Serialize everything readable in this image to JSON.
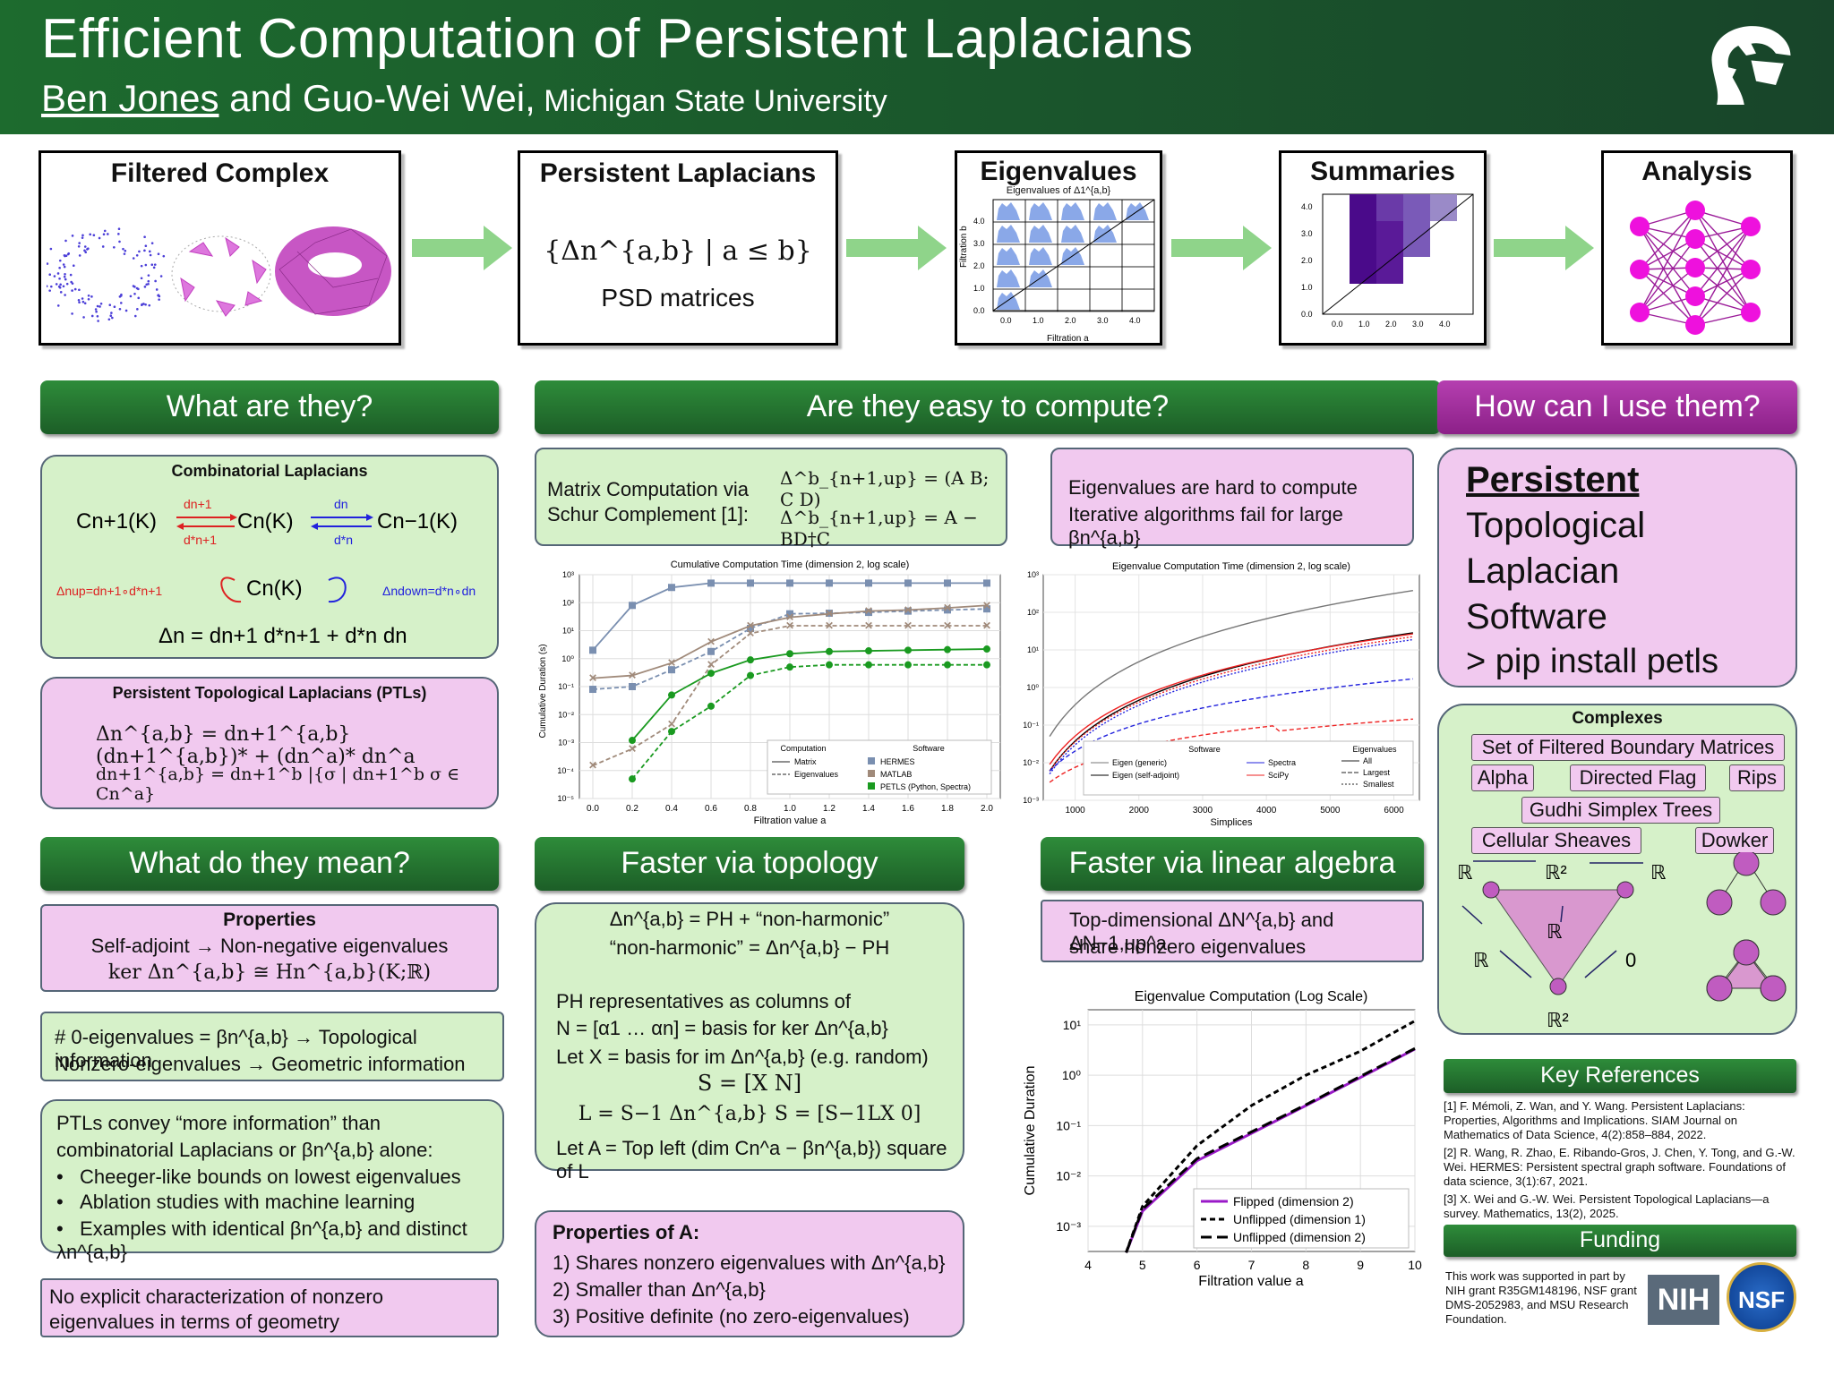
{
  "header": {
    "title": "Efficient Computation of Persistent Laplacians",
    "author1": "Ben Jones",
    "and": " and Guo-Wei Wei,",
    "institution": " Michigan State University"
  },
  "pipeline": {
    "s1": "Filtered Complex",
    "s2": "Persistent Laplacians",
    "s2_formula": "{Δn^{a,b} | a ≤ b}",
    "s2_sub": "PSD matrices",
    "s3": "Eigenvalues",
    "s3_caption": "Eigenvalues of Δ1^{a,b}",
    "s3_ylabel": "Filtration b",
    "s3_xlabel": "Filtration a",
    "s3_ticks": [
      "0.0",
      "1.0",
      "2.0",
      "3.0",
      "4.0"
    ],
    "s4": "Summaries",
    "s4_ticks": [
      "0.0",
      "1.0",
      "2.0",
      "3.0",
      "4.0"
    ],
    "s5": "Analysis"
  },
  "what": {
    "bar": "What are they?",
    "comb_title": "Combinatorial Laplacians",
    "cn1": "Cn+1(K)",
    "cn": "Cn(K)",
    "cnm1": "Cn−1(K)",
    "dn1": "dn+1",
    "dn1s": "d*n+1",
    "dn": "dn",
    "dns": "d*n",
    "up": "Δnup=dn+1∘d*n+1",
    "down": "Δndown=d*n∘dn",
    "lap": "Δn = dn+1 d*n+1 + d*n dn",
    "ptl_title": "Persistent Topological Laplacians (PTLs)",
    "ptl1": "Δn^{a,b} = dn+1^{a,b} (dn+1^{a,b})* + (dn^a)* dn^a",
    "ptl2": "dn+1^{a,b} = dn+1^b |{σ | dn+1^b σ ∈ Cn^a}"
  },
  "compute": {
    "bar": "Are they easy to compute?",
    "schur1": "Matrix Computation via",
    "schur2": "Schur Complement [1]:",
    "eq1": "Δ^b_{n+1,up} = (A B; C D)",
    "eq2": "Δ^b_{n+1,up} = A − BD†C",
    "hard1": "Eigenvalues are hard to compute",
    "hard2": "Iterative algorithms fail for large βn^{a,b}"
  },
  "use": {
    "bar": "How can I use them?",
    "p1": "Persistent",
    "p2": "Topological",
    "p3": "Laplacian",
    "p4": "Software",
    "pip": "> pip install petls",
    "complexes": "Complexes",
    "c1": "Set of Filtered Boundary Matrices",
    "c2": "Alpha",
    "c3": "Directed Flag",
    "c4": "Rips",
    "c5": "Gudhi Simplex Trees",
    "c6": "Cellular Sheaves",
    "c7": "Dowker"
  },
  "mean": {
    "bar": "What do they mean?",
    "prop": "Properties",
    "prop1": "Self-adjoint → Non-negative eigenvalues",
    "prop2": "ker Δn^{a,b} ≅ Hn^{a,b}(K;ℝ)",
    "z1": "# 0-eigenvalues = βn^{a,b}  → Topological information",
    "z2": "Nonzero-eigenvalues   → Geometric information",
    "more1": "PTLs convey “more information” than",
    "more2": "combinatorial Laplacians or βn^{a,b} alone:",
    "b1": "Cheeger-like bounds on lowest eigenvalues",
    "b2": "Ablation studies with machine learning",
    "b3": "Examples with identical  βn^{a,b} and distinct λn^{a,b}",
    "no1": "No explicit characterization of nonzero",
    "no2": "eigenvalues in terms of geometry"
  },
  "topo": {
    "bar": "Faster via topology",
    "l1": "Δn^{a,b} = PH + “non-harmonic”",
    "l2": "“non-harmonic” = Δn^{a,b} − PH",
    "l3": "PH representatives as columns of",
    "l4": "N = [α1 … αn] = basis for ker Δn^{a,b}",
    "l5": "Let X = basis for im Δn^{a,b} (e.g. random)",
    "l6": "S = [X   N]",
    "l7": "L = S−1 Δn^{a,b} S = [S−1LX   0]",
    "l8": "Let A = Top left (dim Cn^a − βn^{a,b}) square of L",
    "propA": "Properties of A:",
    "pa1": "1)  Shares nonzero eigenvalues with Δn^{a,b}",
    "pa2": "2)  Smaller than Δn^{a,b}",
    "pa3": "3)  Positive definite (no zero-eigenvalues)"
  },
  "linalg": {
    "bar": "Faster via linear algebra",
    "l1": "Top-dimensional ΔN^{a,b} and ΔN−1,up^a",
    "l2": "share nonzero eigenvalues"
  },
  "refs": {
    "bar": "Key References",
    "r1": "[1] F. Mémoli, Z. Wan, and Y. Wang. Persistent Laplacians: Properties, Algorithms and Implications. SIAM Journal on Mathematics of Data Science, 4(2):858–884, 2022.",
    "r2": "[2] R. Wang, R. Zhao, E. Ribando-Gros, J. Chen, Y. Tong, and G.-W. Wei. HERMES: Persistent spectral graph software. Foundations of data science, 3(1):67, 2021.",
    "r3": "[3] X. Wei and G.-W. Wei. Persistent Topological Laplacians—a survey. Mathematics, 13(2), 2025."
  },
  "funding": {
    "bar": "Funding",
    "text": "This work was supported in part by NIH grant R35GM148196, NSF grant DMS-2052983, and MSU Research Foundation.",
    "nih": "NIH",
    "nsf": "NSF"
  },
  "chart_data": [
    {
      "type": "line",
      "title": "Cumulative Computation Time (dimension 2, log scale)",
      "xlabel": "Filtration value a",
      "ylabel": "Cumulative Duration (s)",
      "yscale": "log",
      "ylim": [
        1e-05,
        1000.0
      ],
      "x": [
        0,
        0.2,
        0.4,
        0.6,
        0.8,
        1.0,
        1.2,
        1.4,
        1.6,
        1.8,
        2.0
      ],
      "legend_computation": [
        "Matrix",
        "Eigenvalues"
      ],
      "legend_software": [
        "HERMES",
        "MATLAB",
        "PETLS (Python, Spectra)"
      ],
      "legend_titles": [
        "Computation",
        "Software"
      ],
      "series": [
        {
          "name": "HERMES",
          "color": "#7a8fb0",
          "matrix": [
            2,
            80,
            350,
            500,
            500,
            500,
            500,
            500,
            500,
            500,
            500
          ],
          "eigen": [
            0.08,
            0.1,
            0.4,
            1.8,
            12,
            40,
            42,
            45,
            50,
            55,
            60
          ]
        },
        {
          "name": "MATLAB",
          "color": "#a08a7a",
          "matrix": [
            0.2,
            0.25,
            0.7,
            4,
            15,
            30,
            40,
            50,
            55,
            65,
            80
          ],
          "eigen": [
            0.00015,
            0.0006,
            0.0045,
            0.6,
            8,
            15,
            15,
            15,
            15,
            15,
            15
          ]
        },
        {
          "name": "PETLS (Python, Spectra)",
          "color": "#1a9a20",
          "matrix": [
            null,
            0.0012,
            0.05,
            0.3,
            0.9,
            1.5,
            1.8,
            1.9,
            2.0,
            2.1,
            2.2
          ],
          "eigen": [
            null,
            5e-05,
            0.0025,
            0.02,
            0.25,
            0.5,
            0.6,
            0.6,
            0.6,
            0.6,
            0.6
          ]
        }
      ]
    },
    {
      "type": "line",
      "title": "Eigenvalue Computation Time (dimension 2, log scale)",
      "xlabel": "Simplices",
      "ylabel": "",
      "yscale": "log",
      "ylim": [
        0.001,
        1000.0
      ],
      "xticks": [
        1000,
        2000,
        3000,
        4000,
        5000,
        6000
      ],
      "legend_software": [
        "Eigen (generic)",
        "Eigen (self-adjoint)",
        "Spectra",
        "SciPy"
      ],
      "legend_eigen": [
        "All",
        "Largest",
        "Smallest"
      ],
      "legend_titles": [
        "Software",
        "Eigenvalues"
      ]
    },
    {
      "type": "line",
      "title": "Eigenvalue Computation (Log Scale)",
      "xlabel": "Filtration value a",
      "ylabel": "Cumulative Duration",
      "yscale": "log",
      "ylim": [
        0.0003,
        20
      ],
      "xticks": [
        4,
        5,
        6,
        7,
        8,
        9,
        10
      ],
      "series": [
        {
          "name": "Flipped (dimension 2)",
          "x": [
            4.7,
            5,
            6,
            7,
            8,
            9,
            10
          ],
          "y": [
            0.0003,
            0.002,
            0.02,
            0.07,
            0.25,
            0.9,
            3.3
          ]
        },
        {
          "name": "Unflipped (dimension 1)",
          "x": [
            4.7,
            5,
            6,
            7,
            8,
            9,
            10
          ],
          "y": [
            0.0003,
            0.0025,
            0.04,
            0.25,
            1.0,
            3.0,
            12
          ]
        },
        {
          "name": "Unflipped (dimension 2)",
          "x": [
            4.7,
            5,
            6,
            7,
            8,
            9,
            10
          ],
          "y": [
            0.0003,
            0.0022,
            0.022,
            0.075,
            0.26,
            0.95,
            3.4
          ]
        }
      ]
    }
  ]
}
